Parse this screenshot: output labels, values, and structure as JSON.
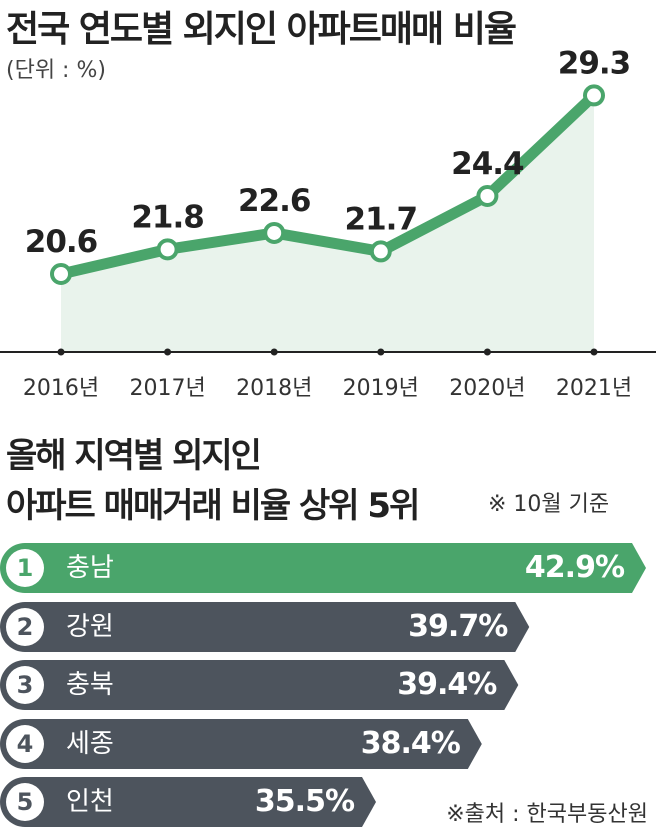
{
  "title": "전국 연도별 외지인 아파트매매 비율",
  "unit_label": "(단위 : %)",
  "colors": {
    "line": "#4aa56b",
    "area": "#e9f3ec",
    "top_bar": "#4aa56b",
    "bar": "#4d545d",
    "axis": "#222222"
  },
  "chart_data": [
    {
      "type": "line",
      "title": "전국 연도별 외지인 아파트매매 비율",
      "unit": "(단위 : %)",
      "categories": [
        "2016년",
        "2017년",
        "2018년",
        "2019년",
        "2020년",
        "2021년"
      ],
      "series": [
        {
          "values": [
            20.6,
            21.8,
            22.6,
            21.7,
            24.4,
            29.3
          ]
        }
      ],
      "data_labels": [
        "20.6",
        "21.8",
        "22.6",
        "21.7",
        "24.4",
        "29.3"
      ],
      "ylim": [
        16.8,
        32
      ],
      "grid": false,
      "area_fill": true
    },
    {
      "type": "bar",
      "orientation": "horizontal",
      "title": "올해 지역별 외지인 아파트 매매거래 비율 상위 5위",
      "categories": [
        "충남",
        "강원",
        "충북",
        "세종",
        "인천"
      ],
      "ranks": [
        "1",
        "2",
        "3",
        "4",
        "5"
      ],
      "values": [
        42.9,
        39.7,
        39.4,
        38.4,
        35.5
      ],
      "value_labels": [
        "42.9%",
        "39.7%",
        "39.4%",
        "38.4%",
        "35.5%"
      ]
    }
  ],
  "subtitle": {
    "line1": "올해 지역별 외지인",
    "line2": "아파트 매매거래 비율 상위 5위",
    "basis": "※ 10월 기준"
  },
  "source": "※출처 : 한국부동산원"
}
